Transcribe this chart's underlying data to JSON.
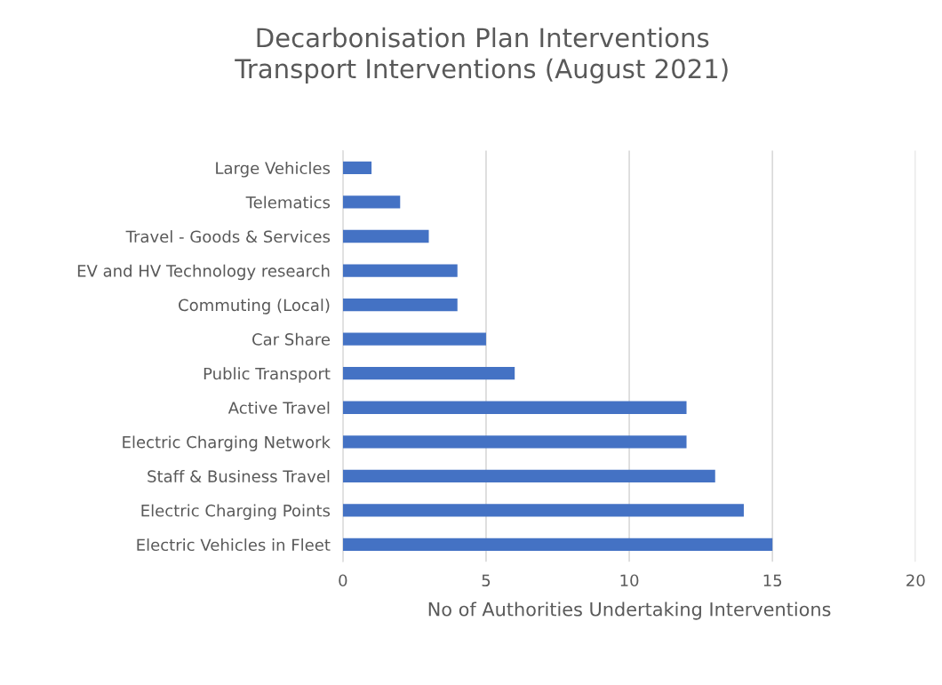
{
  "chart_data": {
    "type": "bar",
    "orientation": "horizontal",
    "title": "Decarbonisation Plan Interventions\nTransport Interventions (August 2021)",
    "xlabel": "No of Authorities Undertaking Interventions",
    "categories": [
      "Large Vehicles",
      "Telematics",
      "Travel - Goods & Services",
      "EV and HV Technology research",
      "Commuting (Local)",
      "Car Share",
      "Public Transport",
      "Active Travel",
      "Electric Charging Network",
      "Staff & Business Travel",
      "Electric Charging Points",
      "Electric Vehicles in Fleet"
    ],
    "values": [
      1,
      2,
      3,
      4,
      4,
      5,
      6,
      12,
      12,
      13,
      14,
      15
    ],
    "color": "#4472c4",
    "xlim": [
      0,
      20
    ],
    "xticks": [
      0,
      5,
      10,
      15,
      20
    ],
    "grid": "x",
    "legend": false
  }
}
